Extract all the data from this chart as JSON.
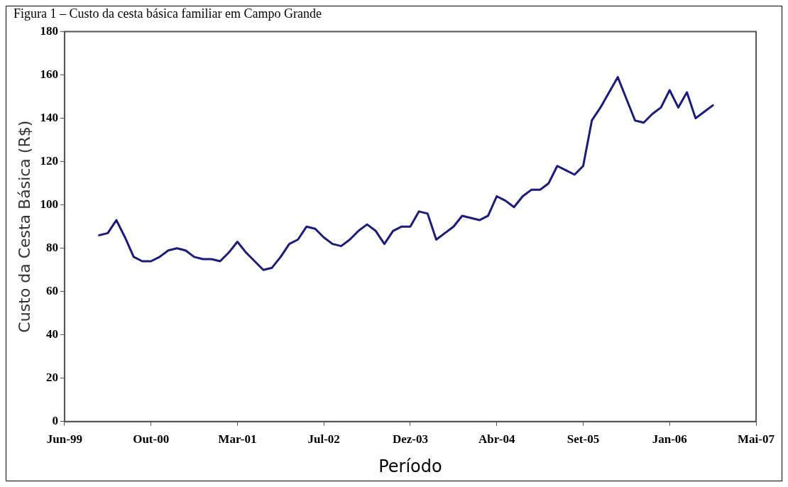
{
  "chart_data": {
    "type": "line",
    "title": "Figura 1 – Custo da cesta básica familiar em Campo Grande",
    "xlabel": "Período",
    "ylabel": "Custo da Cesta Básica (R$)",
    "categories": [
      "Jun-99",
      null,
      null,
      null,
      null,
      null,
      null,
      null,
      null,
      null,
      "Out-00",
      null,
      null,
      null,
      null,
      null,
      null,
      null,
      null,
      null,
      "Mar-01",
      null,
      null,
      null,
      null,
      null,
      null,
      null,
      null,
      null,
      "Jul-02",
      null,
      null,
      null,
      null,
      null,
      null,
      null,
      null,
      null,
      "Dez-03",
      null,
      null,
      null,
      null,
      null,
      null,
      null,
      null,
      null,
      "Abr-04",
      null,
      null,
      null,
      null,
      null,
      null,
      null,
      null,
      null,
      "Set-05",
      null,
      null,
      null,
      null,
      null,
      null,
      null,
      null,
      null,
      "Jan-06",
      null,
      null,
      null,
      null,
      null,
      null,
      null,
      null,
      null,
      "Mai-07"
    ],
    "ylim": [
      0,
      180
    ],
    "yticks": [
      0,
      20,
      40,
      60,
      80,
      100,
      120,
      140,
      160,
      180
    ],
    "grid": false,
    "legend": false,
    "marker": "none",
    "line_style": "solid",
    "series": [
      {
        "color": "#1a1a80",
        "values": [
          null,
          null,
          null,
          null,
          86,
          87,
          93,
          85,
          76,
          74,
          74,
          76,
          79,
          80,
          79,
          76,
          75,
          75,
          74,
          78,
          83,
          78,
          74,
          70,
          71,
          76,
          82,
          84,
          90,
          89,
          85,
          82,
          81,
          84,
          88,
          91,
          88,
          82,
          88,
          90,
          90,
          97,
          96,
          84,
          87,
          90,
          95,
          94,
          93,
          95,
          104,
          102,
          99,
          104,
          107,
          107,
          110,
          118,
          116,
          114,
          118,
          139,
          145,
          152,
          159,
          149,
          139,
          138,
          142,
          145,
          153,
          145,
          152,
          140,
          143,
          146,
          null,
          null,
          null,
          null,
          null
        ]
      }
    ]
  }
}
